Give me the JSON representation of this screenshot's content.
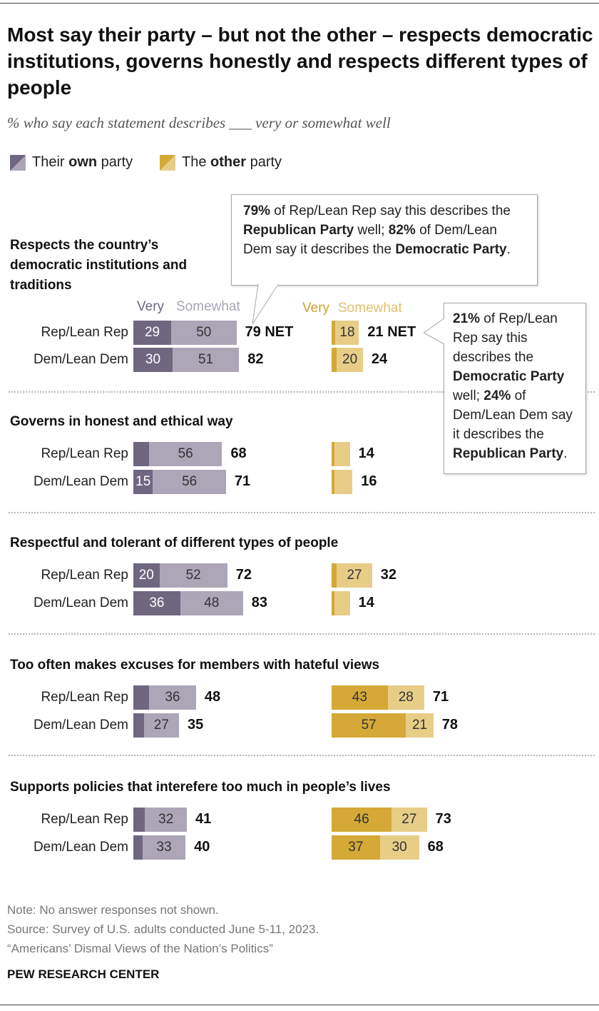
{
  "title": "Most say their party – but not the other – respects democratic institutions, governs honestly and respects different types of people",
  "subtitle": "% who say each statement describes ___ very or somewhat well",
  "legend": {
    "own_pre": "Their ",
    "own_bold": "own",
    "own_post": " party",
    "other_pre": "The ",
    "other_bold": "other",
    "other_post": " party"
  },
  "headers": {
    "very": "Very",
    "somewhat": "Somewhat"
  },
  "net_suffix": "NET",
  "colors": {
    "own_very": "#6f6780",
    "own_somewhat": "#aca6b7",
    "other_very": "#d4a937",
    "other_somewhat": "#e8cd87",
    "own_header_very": "#6f6780",
    "own_header_somewhat": "#aaa4b5",
    "other_header_very": "#d0a430",
    "other_header_somewhat": "#e0c072"
  },
  "callouts": {
    "left": {
      "p1": "79%",
      "t1": " of Rep/Lean Rep say this describes the ",
      "p2": "Republican Party",
      "t2": " well; ",
      "p3": "82%",
      "t3": " of Dem/Lean Dem say it describes the ",
      "p4": "Democratic Party",
      "t4": "."
    },
    "right": {
      "p1": "21%",
      "t1": " of Rep/Lean Rep say this describes the ",
      "p2": "Democratic Party",
      "t2": " well; ",
      "p3": "24%",
      "t3": " of Dem/Lean Dem say it describes the ",
      "p4": "Republican Party",
      "t4": "."
    }
  },
  "chart_data": {
    "type": "bar",
    "stacked": true,
    "groups": [
      "Their own party",
      "The other party"
    ],
    "categories": [
      {
        "label": "Respects the country’s democratic institutions and traditions",
        "rows": [
          {
            "name": "Rep/Lean Rep",
            "own": {
              "very": 29,
              "somewhat": 50,
              "net": 79,
              "very_label": "29",
              "somewhat_label": "50",
              "net_label": "79"
            },
            "other": {
              "very": 3,
              "somewhat": 18,
              "net": 21,
              "very_label": "",
              "somewhat_label": "18",
              "net_label": "21"
            }
          },
          {
            "name": "Dem/Lean Dem",
            "own": {
              "very": 30,
              "somewhat": 51,
              "net": 82,
              "very_label": "30",
              "somewhat_label": "51",
              "net_label": "82"
            },
            "other": {
              "very": 4,
              "somewhat": 20,
              "net": 24,
              "very_label": "",
              "somewhat_label": "20",
              "net_label": "24"
            }
          }
        ]
      },
      {
        "label": "Governs in honest and ethical way",
        "rows": [
          {
            "name": "Rep/Lean Rep",
            "own": {
              "very": 12,
              "somewhat": 56,
              "net": 68,
              "very_label": "",
              "somewhat_label": "56",
              "net_label": "68"
            },
            "other": {
              "very": 2,
              "somewhat": 12,
              "net": 14,
              "very_label": "",
              "somewhat_label": "",
              "net_label": "14"
            }
          },
          {
            "name": "Dem/Lean Dem",
            "own": {
              "very": 15,
              "somewhat": 56,
              "net": 71,
              "very_label": "15",
              "somewhat_label": "56",
              "net_label": "71"
            },
            "other": {
              "very": 2,
              "somewhat": 14,
              "net": 16,
              "very_label": "",
              "somewhat_label": "",
              "net_label": "16"
            }
          }
        ]
      },
      {
        "label": "Respectful and tolerant of different types of people",
        "rows": [
          {
            "name": "Rep/Lean Rep",
            "own": {
              "very": 20,
              "somewhat": 52,
              "net": 72,
              "very_label": "20",
              "somewhat_label": "52",
              "net_label": "72"
            },
            "other": {
              "very": 4,
              "somewhat": 27,
              "net": 32,
              "very_label": "",
              "somewhat_label": "27",
              "net_label": "32"
            }
          },
          {
            "name": "Dem/Lean Dem",
            "own": {
              "very": 36,
              "somewhat": 48,
              "net": 83,
              "very_label": "36",
              "somewhat_label": "48",
              "net_label": "83"
            },
            "other": {
              "very": 2,
              "somewhat": 12,
              "net": 14,
              "very_label": "",
              "somewhat_label": "",
              "net_label": "14"
            }
          }
        ]
      },
      {
        "label": "Too often makes excuses for members with hateful views",
        "rows": [
          {
            "name": "Rep/Lean Rep",
            "own": {
              "very": 12,
              "somewhat": 36,
              "net": 48,
              "very_label": "",
              "somewhat_label": "36",
              "net_label": "48"
            },
            "other": {
              "very": 43,
              "somewhat": 28,
              "net": 71,
              "very_label": "43",
              "somewhat_label": "28",
              "net_label": "71"
            }
          },
          {
            "name": "Dem/Lean Dem",
            "own": {
              "very": 8,
              "somewhat": 27,
              "net": 35,
              "very_label": "",
              "somewhat_label": "27",
              "net_label": "35"
            },
            "other": {
              "very": 57,
              "somewhat": 21,
              "net": 78,
              "very_label": "57",
              "somewhat_label": "21",
              "net_label": "78"
            }
          }
        ]
      },
      {
        "label": "Supports policies that interefere too much in people’s lives",
        "rows": [
          {
            "name": "Rep/Lean Rep",
            "own": {
              "very": 9,
              "somewhat": 32,
              "net": 41,
              "very_label": "",
              "somewhat_label": "32",
              "net_label": "41"
            },
            "other": {
              "very": 46,
              "somewhat": 27,
              "net": 73,
              "very_label": "46",
              "somewhat_label": "27",
              "net_label": "73"
            }
          },
          {
            "name": "Dem/Lean Dem",
            "own": {
              "very": 7,
              "somewhat": 33,
              "net": 40,
              "very_label": "",
              "somewhat_label": "33",
              "net_label": "40"
            },
            "other": {
              "very": 37,
              "somewhat": 30,
              "net": 68,
              "very_label": "37",
              "somewhat_label": "30",
              "net_label": "68"
            }
          }
        ]
      }
    ]
  },
  "notes": {
    "note": "Note: No answer responses not shown.",
    "source": "Source: Survey of U.S. adults conducted June 5-11, 2023.",
    "report": "“Americans’ Dismal Views of the Nation’s Politics”"
  },
  "brand": "PEW RESEARCH CENTER"
}
